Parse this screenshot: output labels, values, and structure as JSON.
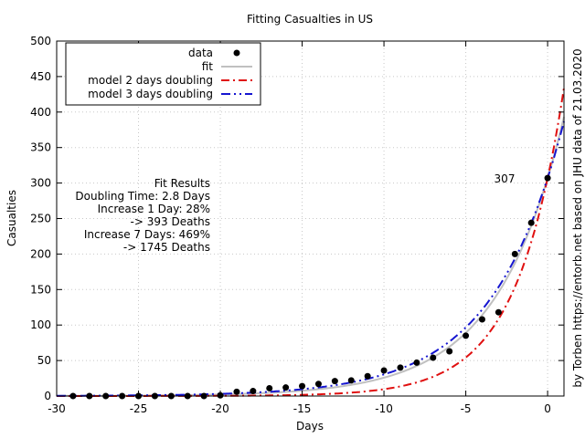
{
  "chart_data": {
    "type": "scatter",
    "title": "Fitting Casualties in US",
    "xlabel": "Days",
    "ylabel": "Casualties",
    "xlim": [
      -30,
      1
    ],
    "ylim": [
      0,
      500
    ],
    "x_ticks": [
      -30,
      -25,
      -20,
      -15,
      -10,
      -5,
      0
    ],
    "y_ticks": [
      0,
      50,
      100,
      150,
      200,
      250,
      300,
      350,
      400,
      450,
      500
    ],
    "grid": true,
    "legend_position": "top-left",
    "legend": [
      {
        "label": "data",
        "style": "points",
        "color": "#000000"
      },
      {
        "label": "fit",
        "style": "solid",
        "color": "#c0c0c0"
      },
      {
        "label": "model 2 days doubling",
        "style": "dash",
        "color": "#e01010"
      },
      {
        "label": "model 3 days doubling",
        "style": "dashdot",
        "color": "#1515d0"
      }
    ],
    "series": [
      {
        "name": "data",
        "x": [
          -29,
          -28,
          -27,
          -26,
          -25,
          -24,
          -23,
          -22,
          -21,
          -20,
          -19,
          -18,
          -17,
          -16,
          -15,
          -14,
          -13,
          -12,
          -11,
          -10,
          -9,
          -8,
          -7,
          -6,
          -5,
          -4,
          -3,
          -2,
          -1,
          0
        ],
        "y": [
          0,
          0,
          0,
          0,
          0,
          0,
          0,
          0,
          0,
          1,
          6,
          7,
          11,
          12,
          14,
          17,
          21,
          22,
          28,
          36,
          40,
          47,
          54,
          63,
          85,
          108,
          118,
          200,
          244,
          307
        ]
      }
    ],
    "annotations": {
      "last_value": "307",
      "fit_results": [
        "Fit Results",
        "Doubling Time: 2.8 Days",
        "Increase 1 Day: 28%",
        "-> 393 Deaths",
        "Increase 7 Days: 469%",
        "-> 1745 Deaths"
      ],
      "credit": "by Torben https://entorb.net based on JHU data of 21.03.2020"
    }
  }
}
